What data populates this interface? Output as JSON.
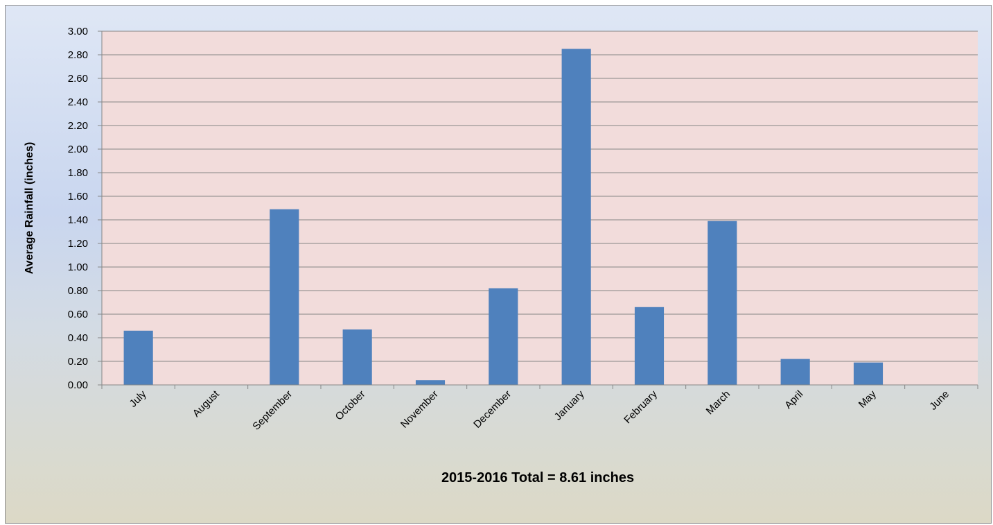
{
  "chart_data": {
    "type": "bar",
    "categories": [
      "July",
      "August",
      "September",
      "October",
      "November",
      "December",
      "January",
      "February",
      "March",
      "April",
      "May",
      "June"
    ],
    "values": [
      0.46,
      0.0,
      1.49,
      0.47,
      0.04,
      0.82,
      2.85,
      0.66,
      1.39,
      0.22,
      0.19,
      0.0
    ],
    "title": "",
    "xlabel": "2015-2016 Total = 8.61 inches",
    "ylabel": "Average Rainfall (inches)",
    "ylim": [
      0,
      3.0
    ],
    "ytick_step": 0.2,
    "ytick_labels": [
      "0.00",
      "0.20",
      "0.40",
      "0.60",
      "0.80",
      "1.00",
      "1.20",
      "1.40",
      "1.60",
      "1.80",
      "2.00",
      "2.20",
      "2.40",
      "2.60",
      "2.80",
      "3.00"
    ],
    "grid": true,
    "legend": "none",
    "colors": {
      "bar": "#4f81bd",
      "plot_background": "#f2dcdb",
      "gridline": "#868686",
      "axis": "#868686"
    }
  }
}
